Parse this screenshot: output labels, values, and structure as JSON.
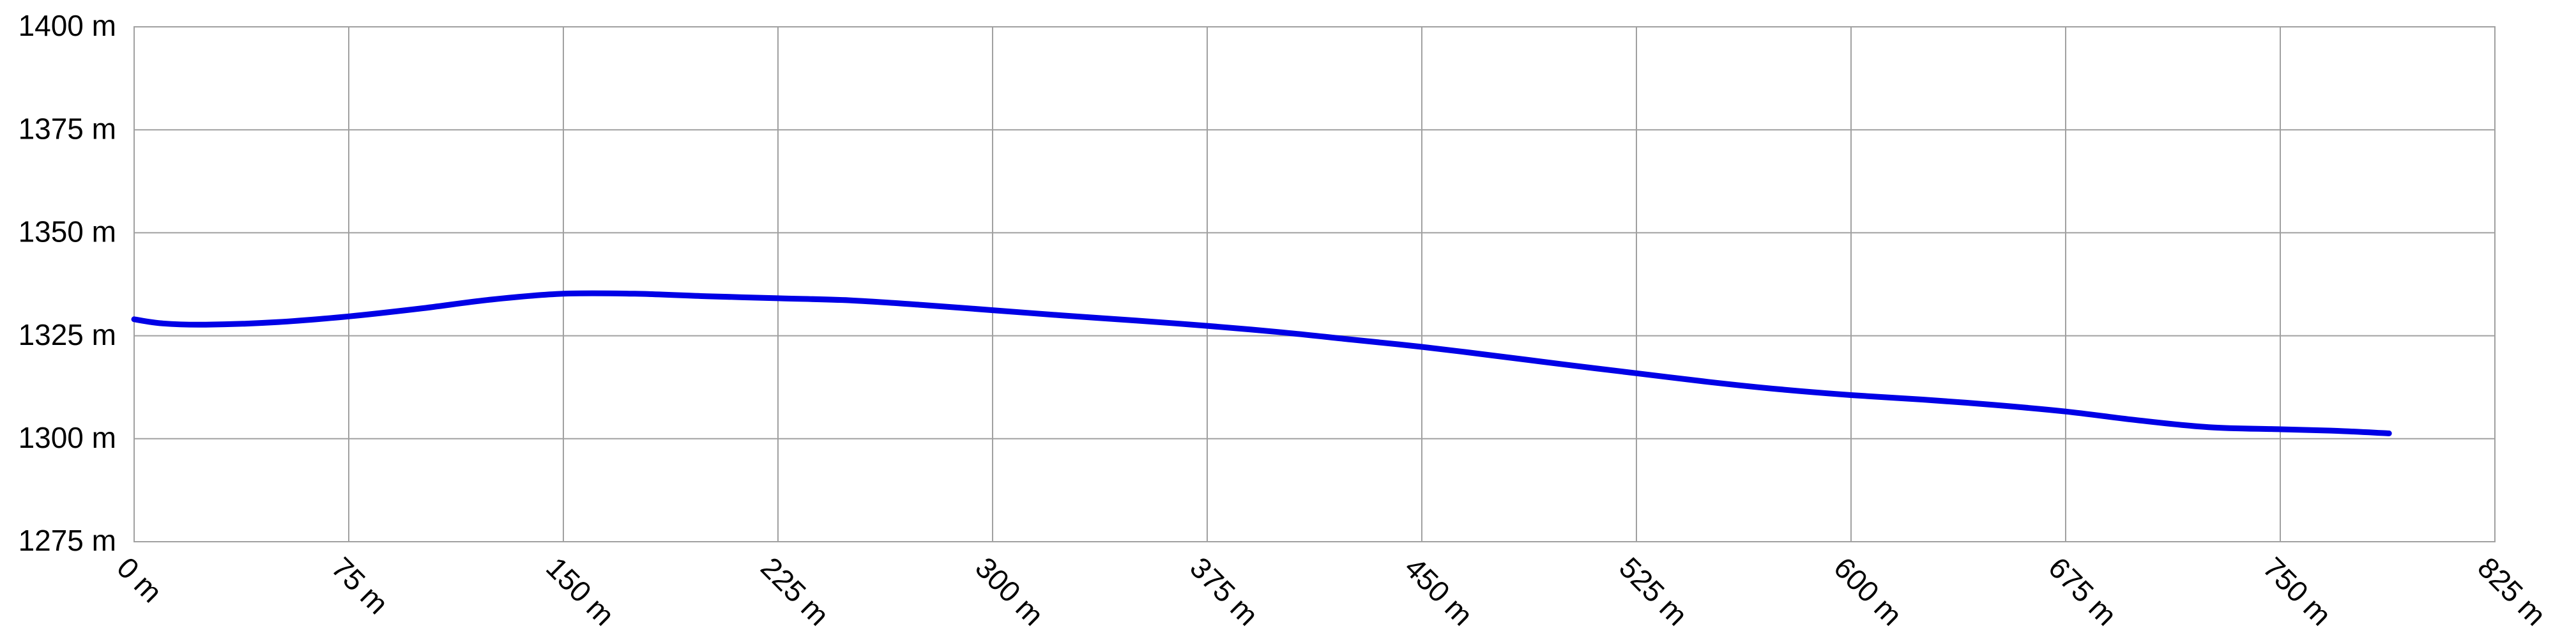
{
  "chart_data": {
    "type": "line",
    "title": "",
    "xlabel": "",
    "ylabel": "",
    "xlim": [
      0,
      825
    ],
    "ylim": [
      1275,
      1400
    ],
    "x_ticks": [
      0,
      75,
      150,
      225,
      300,
      375,
      450,
      525,
      600,
      675,
      750,
      825
    ],
    "y_ticks": [
      1275,
      1300,
      1325,
      1350,
      1375,
      1400
    ],
    "x_tick_labels": [
      "0 m",
      "75 m",
      "150 m",
      "225 m",
      "300 m",
      "375 m",
      "450 m",
      "525 m",
      "600 m",
      "675 m",
      "750 m",
      "825 m"
    ],
    "y_tick_labels": [
      "1275 m",
      "1300 m",
      "1325 m",
      "1350 m",
      "1375 m",
      "1400 m"
    ],
    "grid": true,
    "legend": "none",
    "line_color": "#0000e6",
    "grid_color": "#a0a0a0",
    "series": [
      {
        "x": [
          0,
          10,
          25,
          50,
          75,
          100,
          125,
          150,
          175,
          200,
          225,
          250,
          275,
          300,
          325,
          350,
          375,
          400,
          425,
          450,
          475,
          500,
          525,
          550,
          575,
          600,
          625,
          650,
          675,
          700,
          725,
          750,
          770,
          788
        ],
        "values": [
          1329,
          1328,
          1327.7,
          1328.3,
          1329.7,
          1331.6,
          1333.8,
          1335.2,
          1335.2,
          1334.6,
          1334.1,
          1333.6,
          1332.5,
          1331.2,
          1329.9,
          1328.7,
          1327.4,
          1325.9,
          1324.1,
          1322.3,
          1320.2,
          1318,
          1315.9,
          1313.8,
          1312,
          1310.6,
          1309.5,
          1308.2,
          1306.6,
          1304.5,
          1302.8,
          1302.3,
          1301.9,
          1301.3
        ]
      }
    ]
  }
}
